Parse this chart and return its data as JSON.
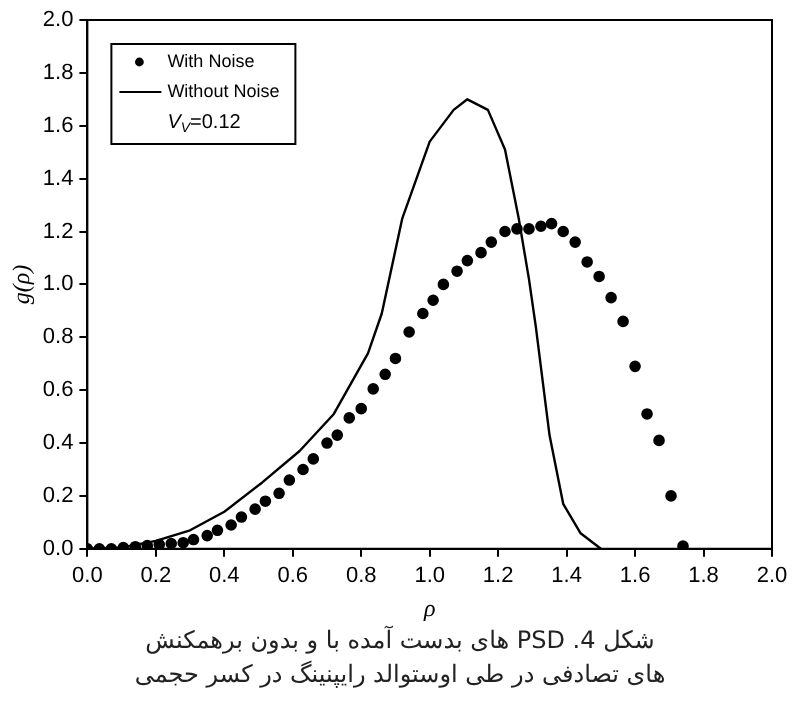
{
  "chart_data": {
    "type": "scatter",
    "xlabel": "ρ",
    "ylabel": "g(ρ)",
    "xlim": [
      0,
      2
    ],
    "ylim": [
      0,
      2
    ],
    "xticks": [
      {
        "value": 0,
        "label": "0.0"
      },
      0.2,
      0.4,
      0.6,
      0.8,
      {
        "value": 1,
        "label": "1.0"
      },
      1.2,
      1.4,
      1.6,
      1.8,
      {
        "value": 2,
        "label": "2.0"
      }
    ],
    "yticks": [
      {
        "value": 0,
        "label": "0.0"
      },
      0.2,
      0.4,
      0.6,
      0.8,
      {
        "value": 1,
        "label": "1.0"
      },
      1.2,
      1.4,
      1.6,
      1.8,
      {
        "value": 2,
        "label": "2.0"
      }
    ],
    "grid": false,
    "legend": "top left",
    "marker": "circle",
    "series": [
      {
        "name": "With Noise",
        "type": "scatter",
        "color": "#000000",
        "x": [
          0.0,
          0.035,
          0.07,
          0.105,
          0.14,
          0.175,
          0.21,
          0.245,
          0.28,
          0.31,
          0.35,
          0.38,
          0.42,
          0.45,
          0.49,
          0.52,
          0.56,
          0.59,
          0.63,
          0.66,
          0.7,
          0.73,
          0.765,
          0.8,
          0.835,
          0.87,
          0.9,
          0.94,
          0.98,
          1.01,
          1.04,
          1.08,
          1.11,
          1.15,
          1.18,
          1.22,
          1.255,
          1.29,
          1.325,
          1.356,
          1.39,
          1.425,
          1.46,
          1.495,
          1.53,
          1.565,
          1.6,
          1.635,
          1.67,
          1.705,
          1.74
        ],
        "values": [
          0.0,
          0.0,
          0.0,
          0.005,
          0.008,
          0.012,
          0.016,
          0.02,
          0.023,
          0.035,
          0.05,
          0.07,
          0.09,
          0.12,
          0.15,
          0.18,
          0.21,
          0.26,
          0.3,
          0.34,
          0.4,
          0.43,
          0.495,
          0.53,
          0.605,
          0.66,
          0.72,
          0.82,
          0.89,
          0.94,
          1.0,
          1.05,
          1.09,
          1.12,
          1.16,
          1.2,
          1.21,
          1.21,
          1.22,
          1.23,
          1.2,
          1.16,
          1.085,
          1.03,
          0.95,
          0.86,
          0.69,
          0.51,
          0.41,
          0.2,
          0.01
        ]
      },
      {
        "name": "Without Noise",
        "type": "line",
        "color": "#000000",
        "marker": "none",
        "line_style": "solid",
        "x": [
          0,
          0.1,
          0.2,
          0.3,
          0.4,
          0.51,
          0.62,
          0.72,
          0.82,
          0.86,
          0.92,
          1.0,
          1.07,
          1.11,
          1.17,
          1.22,
          1.26,
          1.29,
          1.31,
          1.35,
          1.39,
          1.44,
          1.48,
          1.5
        ],
        "values": [
          0,
          0.005,
          0.03,
          0.07,
          0.14,
          0.25,
          0.37,
          0.51,
          0.74,
          0.89,
          1.25,
          1.54,
          1.66,
          1.7,
          1.66,
          1.51,
          1.25,
          1.02,
          0.84,
          0.43,
          0.17,
          0.06,
          0.02,
          0
        ]
      }
    ],
    "annotations": [
      "V$_{V}$=0.12",
      "شکل 4. PSD های بدست آمده با و بدون برهمکنش های تصادفی در طی اوستوالد رایپنینگ در کسر حجمی"
    ]
  }
}
